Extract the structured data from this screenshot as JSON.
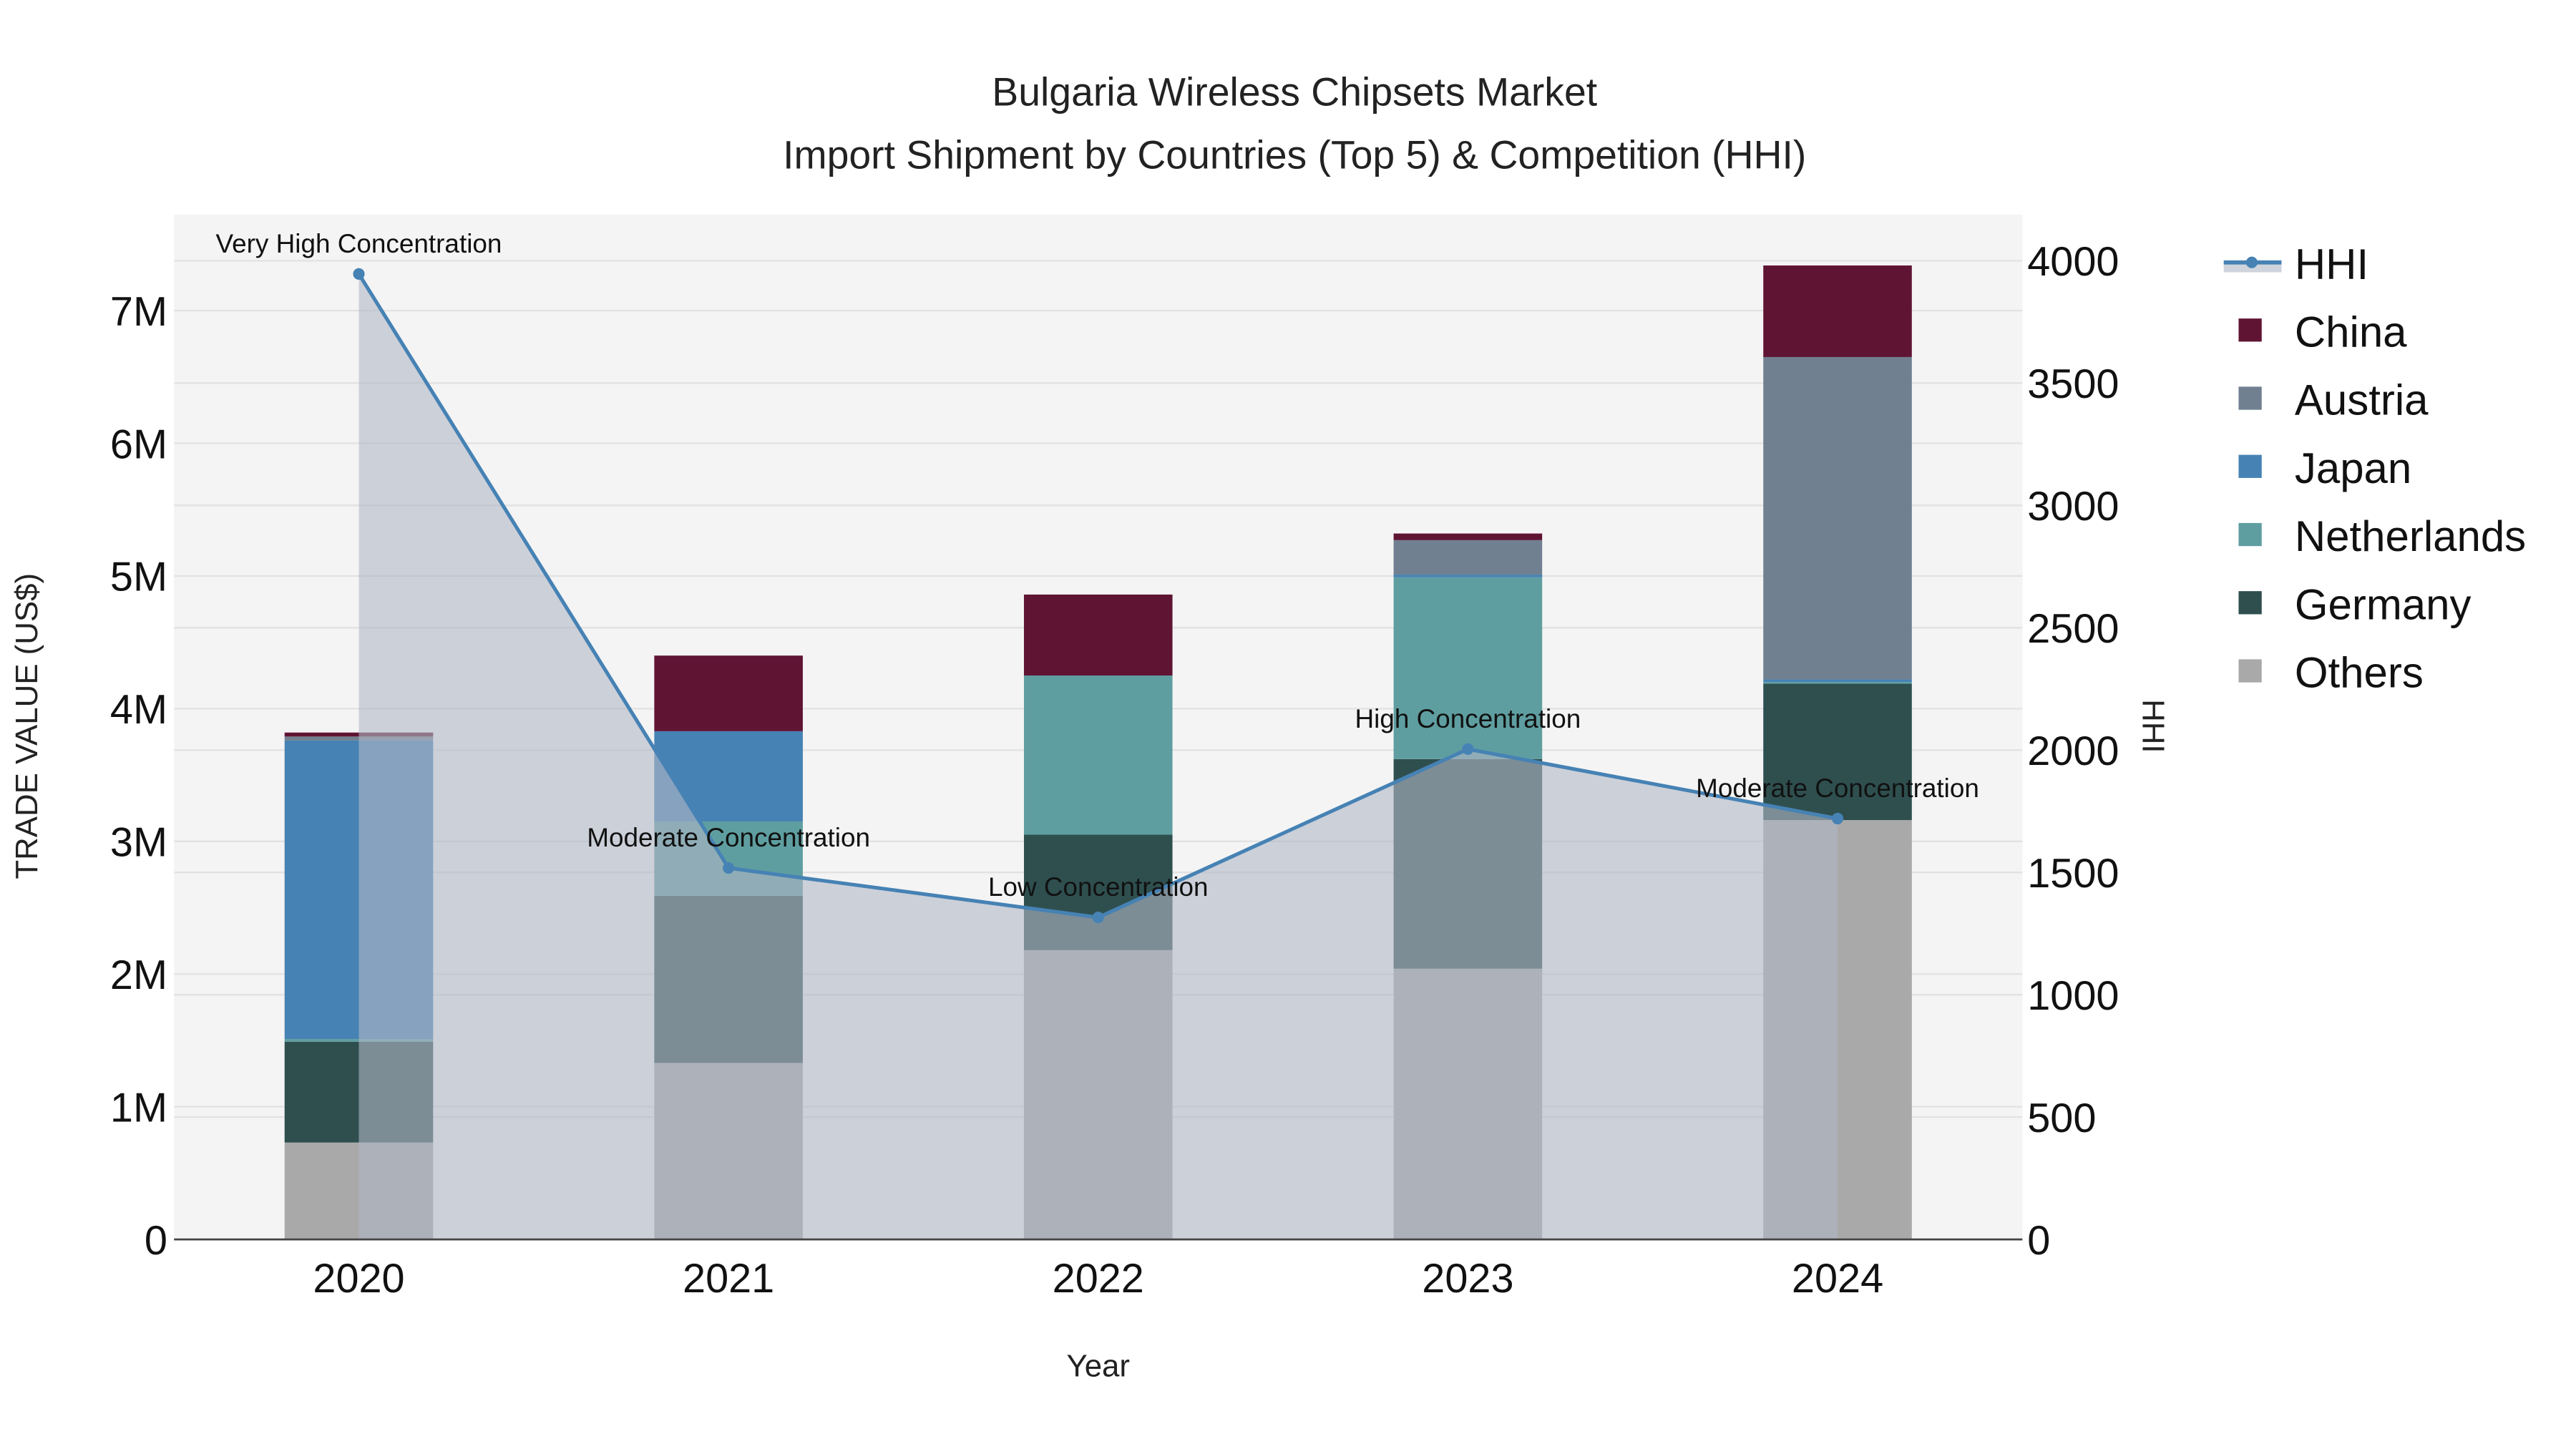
{
  "chart_data": {
    "type": "bar",
    "stacked": true,
    "title": "Bulgaria Wireless Chipsets Market",
    "subtitle": "Import Shipment by Countries (Top 5) & Competition (HHI)",
    "xlabel": "Year",
    "ylabel": "TRADE VALUE (US$)",
    "y2label": "HHI",
    "categories": [
      "2020",
      "2021",
      "2022",
      "2023",
      "2024"
    ],
    "ylim": [
      0,
      7700000
    ],
    "y2lim": [
      0,
      4200
    ],
    "yticks": [
      0,
      1000000,
      2000000,
      3000000,
      4000000,
      5000000,
      6000000,
      7000000
    ],
    "yticklabels": [
      "0",
      "1M",
      "2M",
      "3M",
      "4M",
      "5M",
      "6M",
      "7M"
    ],
    "y2ticks": [
      0,
      500,
      1000,
      1500,
      2000,
      2500,
      3000,
      3500,
      4000
    ],
    "y2ticklabels": [
      "0",
      "500",
      "1000",
      "1500",
      "2000",
      "2500",
      "3000",
      "3500",
      "4000"
    ],
    "series": [
      {
        "name": "Others",
        "color": "#a9a9a9",
        "values": [
          730000,
          1330000,
          2180000,
          2040000,
          3160000
        ]
      },
      {
        "name": "Germany",
        "color": "#2f4f4f",
        "values": [
          760000,
          1260000,
          870000,
          1580000,
          1030000
        ]
      },
      {
        "name": "Netherlands",
        "color": "#5f9ea0",
        "values": [
          20000,
          560000,
          1200000,
          1370000,
          10000
        ]
      },
      {
        "name": "Japan",
        "color": "#4682b4",
        "values": [
          2250000,
          680000,
          0,
          20000,
          20000
        ]
      },
      {
        "name": "Austria",
        "color": "#708090",
        "values": [
          30000,
          0,
          0,
          260000,
          2430000
        ]
      },
      {
        "name": "China",
        "color": "#601434",
        "values": [
          30000,
          570000,
          610000,
          50000,
          690000
        ]
      }
    ],
    "line_series": {
      "name": "HHI",
      "color": "#4682b4",
      "axis": "y2",
      "values": [
        3946,
        1518,
        1316,
        2004,
        1720
      ],
      "annotations": [
        "Very High Concentration",
        "Moderate Concentration",
        "Low Concentration",
        "High Concentration",
        "Moderate Concentration"
      ]
    },
    "legend_order": [
      "HHI",
      "China",
      "Austria",
      "Japan",
      "Netherlands",
      "Germany",
      "Others"
    ],
    "legend_position": "right",
    "grid": true
  }
}
